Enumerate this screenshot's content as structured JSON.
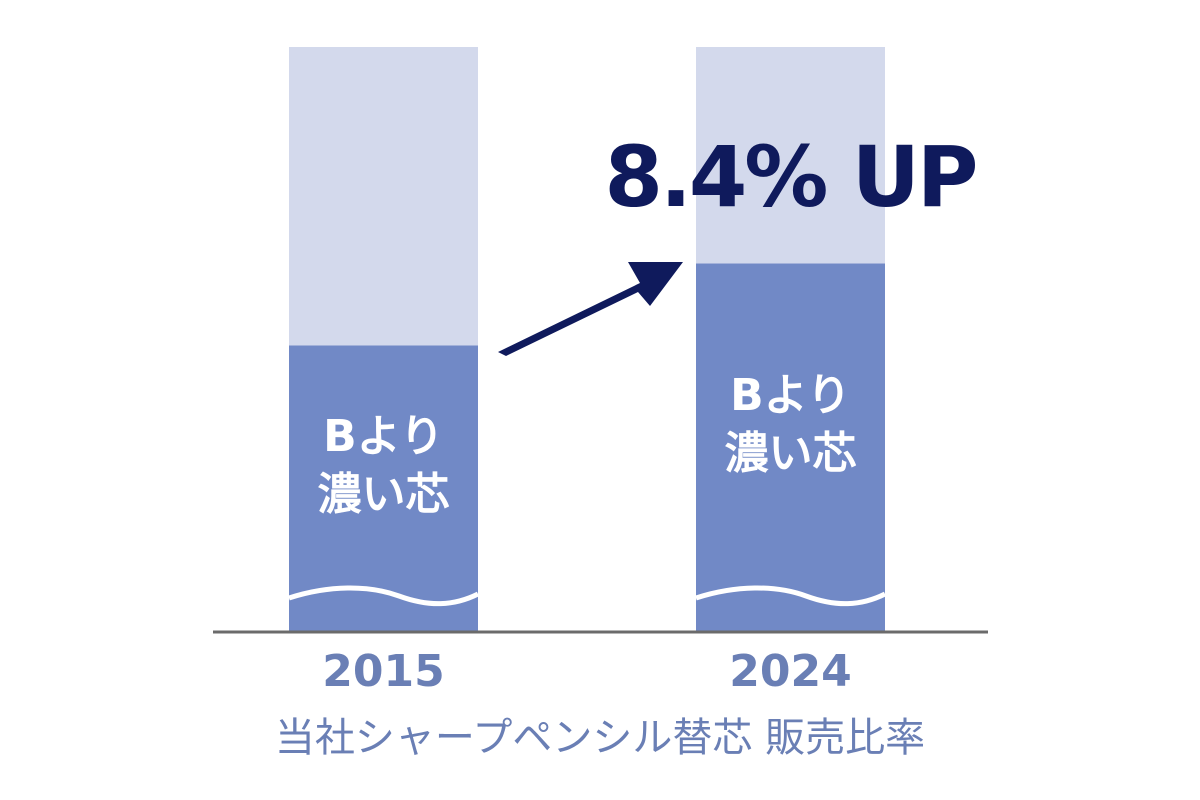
{
  "chart_data": {
    "type": "stacked-bar",
    "categories": [
      "2015",
      "2024"
    ],
    "series": [
      {
        "name": "Bより濃い芯",
        "color": "#7189c6",
        "values": [
          49,
          63
        ]
      },
      {
        "color": "#d3d9ec",
        "values": [
          51,
          37
        ]
      }
    ],
    "annotation": "8.4% UP",
    "xlabel": "当社シャープペンシル替芯 販売比率",
    "baseline_color": "#6b6b6b",
    "text_color": "#6a7fb5",
    "annotation_color": "#0f1a5c"
  }
}
